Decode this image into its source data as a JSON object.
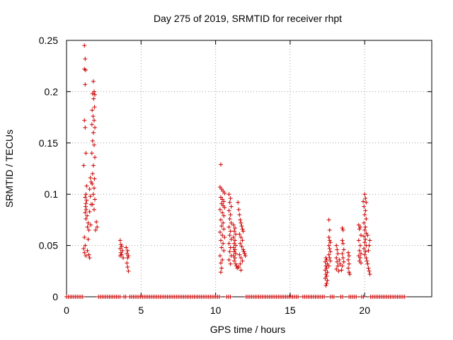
{
  "chart_data": {
    "type": "scatter",
    "title": "Day 275 of 2019, SRMTID for receiver rhpt",
    "xlabel": "GPS time / hours",
    "ylabel": "SRMTID / TECUs",
    "xlim": [
      0,
      24.5
    ],
    "ylim": [
      0,
      0.25
    ],
    "xticks": [
      0,
      5,
      10,
      15,
      20
    ],
    "xtick_labels": [
      "0",
      "5",
      "10",
      "15",
      "20"
    ],
    "yticks": [
      0,
      0.05,
      0.1,
      0.15,
      0.2,
      0.25
    ],
    "ytick_labels": [
      "0",
      "0.05",
      "0.1",
      "0.15",
      "0.2",
      "0.25"
    ],
    "grid": true,
    "marker": "+",
    "series": [
      {
        "name": "SRMTID",
        "color": "#cc0000",
        "points": [
          [
            1.2,
            0.245
          ],
          [
            1.25,
            0.232
          ],
          [
            1.2,
            0.222
          ],
          [
            1.28,
            0.221
          ],
          [
            1.25,
            0.207
          ],
          [
            1.8,
            0.21
          ],
          [
            1.85,
            0.2
          ],
          [
            1.75,
            0.198
          ],
          [
            1.9,
            0.197
          ],
          [
            1.82,
            0.193
          ],
          [
            1.88,
            0.185
          ],
          [
            1.72,
            0.182
          ],
          [
            1.78,
            0.176
          ],
          [
            1.85,
            0.172
          ],
          [
            1.7,
            0.168
          ],
          [
            1.9,
            0.165
          ],
          [
            1.8,
            0.16
          ],
          [
            1.75,
            0.152
          ],
          [
            1.85,
            0.148
          ],
          [
            1.7,
            0.14
          ],
          [
            1.9,
            0.136
          ],
          [
            1.8,
            0.128
          ],
          [
            1.75,
            0.12
          ],
          [
            1.88,
            0.115
          ],
          [
            1.72,
            0.11
          ],
          [
            1.85,
            0.106
          ],
          [
            1.8,
            0.1
          ],
          [
            1.9,
            0.095
          ],
          [
            1.75,
            0.09
          ],
          [
            1.85,
            0.085
          ],
          [
            2.0,
            0.073
          ],
          [
            2.05,
            0.068
          ],
          [
            1.95,
            0.065
          ],
          [
            1.2,
            0.172
          ],
          [
            1.25,
            0.165
          ],
          [
            1.3,
            0.14
          ],
          [
            1.15,
            0.128
          ],
          [
            1.35,
            0.108
          ],
          [
            1.3,
            0.1
          ],
          [
            1.25,
            0.097
          ],
          [
            1.35,
            0.094
          ],
          [
            1.3,
            0.091
          ],
          [
            1.28,
            0.088
          ],
          [
            1.32,
            0.085
          ],
          [
            1.25,
            0.082
          ],
          [
            1.38,
            0.079
          ],
          [
            1.3,
            0.076
          ],
          [
            1.45,
            0.072
          ],
          [
            1.4,
            0.068
          ],
          [
            1.5,
            0.065
          ],
          [
            1.2,
            0.058
          ],
          [
            1.45,
            0.056
          ],
          [
            1.25,
            0.05
          ],
          [
            1.15,
            0.047
          ],
          [
            1.4,
            0.045
          ],
          [
            1.2,
            0.043
          ],
          [
            1.5,
            0.041
          ],
          [
            1.3,
            0.04
          ],
          [
            1.55,
            0.038
          ],
          [
            1.6,
            0.116
          ],
          [
            1.65,
            0.112
          ],
          [
            1.55,
            0.105
          ],
          [
            1.6,
            0.098
          ],
          [
            1.65,
            0.09
          ],
          [
            1.55,
            0.083
          ],
          [
            1.62,
            0.07
          ],
          [
            3.6,
            0.055
          ],
          [
            3.65,
            0.051
          ],
          [
            3.7,
            0.049
          ],
          [
            3.6,
            0.047
          ],
          [
            3.75,
            0.045
          ],
          [
            3.65,
            0.043
          ],
          [
            3.7,
            0.041
          ],
          [
            3.6,
            0.04
          ],
          [
            3.8,
            0.038
          ],
          [
            4.0,
            0.048
          ],
          [
            4.1,
            0.045
          ],
          [
            4.05,
            0.042
          ],
          [
            4.15,
            0.04
          ],
          [
            4.1,
            0.038
          ],
          [
            4.05,
            0.033
          ],
          [
            4.1,
            0.029
          ],
          [
            4.15,
            0.025
          ],
          [
            10.35,
            0.129
          ],
          [
            10.3,
            0.107
          ],
          [
            10.4,
            0.105
          ],
          [
            10.5,
            0.103
          ],
          [
            10.6,
            0.101
          ],
          [
            10.35,
            0.097
          ],
          [
            10.45,
            0.095
          ],
          [
            10.55,
            0.093
          ],
          [
            10.4,
            0.091
          ],
          [
            10.5,
            0.089
          ],
          [
            10.6,
            0.087
          ],
          [
            10.3,
            0.085
          ],
          [
            10.45,
            0.082
          ],
          [
            10.55,
            0.079
          ],
          [
            10.35,
            0.075
          ],
          [
            10.5,
            0.072
          ],
          [
            10.4,
            0.069
          ],
          [
            10.55,
            0.066
          ],
          [
            10.3,
            0.063
          ],
          [
            10.45,
            0.06
          ],
          [
            10.6,
            0.058
          ],
          [
            10.35,
            0.055
          ],
          [
            10.5,
            0.052
          ],
          [
            10.4,
            0.048
          ],
          [
            10.55,
            0.045
          ],
          [
            10.3,
            0.04
          ],
          [
            10.45,
            0.036
          ],
          [
            10.35,
            0.033
          ],
          [
            10.4,
            0.028
          ],
          [
            10.35,
            0.024
          ],
          [
            10.9,
            0.1
          ],
          [
            11.0,
            0.096
          ],
          [
            10.95,
            0.092
          ],
          [
            11.05,
            0.088
          ],
          [
            10.9,
            0.084
          ],
          [
            11.0,
            0.08
          ],
          [
            10.95,
            0.076
          ],
          [
            11.05,
            0.072
          ],
          [
            10.9,
            0.068
          ],
          [
            11.0,
            0.064
          ],
          [
            10.95,
            0.06
          ],
          [
            11.05,
            0.056
          ],
          [
            10.9,
            0.052
          ],
          [
            11.0,
            0.048
          ],
          [
            10.95,
            0.044
          ],
          [
            11.05,
            0.04
          ],
          [
            10.9,
            0.036
          ],
          [
            11.0,
            0.032
          ],
          [
            11.2,
            0.07
          ],
          [
            11.3,
            0.067
          ],
          [
            11.25,
            0.064
          ],
          [
            11.35,
            0.061
          ],
          [
            11.2,
            0.058
          ],
          [
            11.3,
            0.055
          ],
          [
            11.25,
            0.052
          ],
          [
            11.35,
            0.05
          ],
          [
            11.2,
            0.048
          ],
          [
            11.3,
            0.046
          ],
          [
            11.25,
            0.044
          ],
          [
            11.35,
            0.042
          ],
          [
            11.2,
            0.04
          ],
          [
            11.3,
            0.038
          ],
          [
            11.25,
            0.035
          ],
          [
            11.35,
            0.032
          ],
          [
            11.4,
            0.03
          ],
          [
            11.45,
            0.028
          ],
          [
            11.5,
            0.092
          ],
          [
            11.55,
            0.085
          ],
          [
            11.6,
            0.08
          ],
          [
            11.65,
            0.075
          ],
          [
            11.7,
            0.072
          ],
          [
            11.75,
            0.069
          ],
          [
            11.8,
            0.066
          ],
          [
            11.85,
            0.064
          ],
          [
            11.6,
            0.061
          ],
          [
            11.7,
            0.058
          ],
          [
            11.8,
            0.055
          ],
          [
            11.65,
            0.052
          ],
          [
            11.75,
            0.049
          ],
          [
            11.85,
            0.046
          ],
          [
            11.9,
            0.044
          ],
          [
            11.6,
            0.041
          ],
          [
            11.7,
            0.038
          ],
          [
            11.8,
            0.035
          ],
          [
            11.65,
            0.032
          ],
          [
            11.55,
            0.029
          ],
          [
            11.7,
            0.026
          ],
          [
            11.95,
            0.042
          ],
          [
            12.0,
            0.04
          ],
          [
            17.4,
            0.038
          ],
          [
            17.45,
            0.036
          ],
          [
            17.35,
            0.034
          ],
          [
            17.5,
            0.032
          ],
          [
            17.4,
            0.03
          ],
          [
            17.45,
            0.028
          ],
          [
            17.35,
            0.026
          ],
          [
            17.5,
            0.024
          ],
          [
            17.4,
            0.022
          ],
          [
            17.45,
            0.02
          ],
          [
            17.35,
            0.018
          ],
          [
            17.5,
            0.016
          ],
          [
            17.45,
            0.013
          ],
          [
            17.4,
            0.011
          ],
          [
            17.6,
            0.075
          ],
          [
            17.65,
            0.065
          ],
          [
            17.6,
            0.058
          ],
          [
            17.65,
            0.055
          ],
          [
            17.7,
            0.053
          ],
          [
            17.6,
            0.05
          ],
          [
            17.65,
            0.047
          ],
          [
            17.7,
            0.044
          ],
          [
            17.6,
            0.041
          ],
          [
            17.65,
            0.038
          ],
          [
            17.7,
            0.035
          ],
          [
            17.6,
            0.03
          ],
          [
            18.1,
            0.05
          ],
          [
            18.15,
            0.046
          ],
          [
            18.2,
            0.042
          ],
          [
            18.1,
            0.038
          ],
          [
            18.15,
            0.034
          ],
          [
            18.2,
            0.03
          ],
          [
            18.1,
            0.027
          ],
          [
            18.25,
            0.025
          ],
          [
            18.3,
            0.036
          ],
          [
            18.35,
            0.032
          ],
          [
            18.5,
            0.067
          ],
          [
            18.55,
            0.065
          ],
          [
            18.5,
            0.055
          ],
          [
            18.55,
            0.052
          ],
          [
            18.6,
            0.046
          ],
          [
            18.5,
            0.042
          ],
          [
            18.55,
            0.038
          ],
          [
            18.6,
            0.034
          ],
          [
            18.5,
            0.03
          ],
          [
            18.45,
            0.026
          ],
          [
            18.9,
            0.043
          ],
          [
            18.95,
            0.04
          ],
          [
            18.9,
            0.036
          ],
          [
            18.95,
            0.032
          ],
          [
            18.9,
            0.028
          ],
          [
            18.95,
            0.024
          ],
          [
            19.0,
            0.022
          ],
          [
            19.6,
            0.07
          ],
          [
            19.7,
            0.068
          ],
          [
            19.65,
            0.066
          ],
          [
            19.75,
            0.06
          ],
          [
            19.6,
            0.055
          ],
          [
            19.7,
            0.05
          ],
          [
            19.65,
            0.045
          ],
          [
            19.75,
            0.042
          ],
          [
            19.6,
            0.04
          ],
          [
            19.7,
            0.038
          ],
          [
            19.65,
            0.035
          ],
          [
            19.75,
            0.033
          ],
          [
            19.9,
            0.093
          ],
          [
            20.0,
            0.1
          ],
          [
            20.05,
            0.096
          ],
          [
            20.1,
            0.092
          ],
          [
            19.95,
            0.088
          ],
          [
            20.05,
            0.084
          ],
          [
            20.0,
            0.08
          ],
          [
            20.1,
            0.076
          ],
          [
            19.95,
            0.072
          ],
          [
            20.05,
            0.068
          ],
          [
            20.0,
            0.065
          ],
          [
            20.1,
            0.062
          ],
          [
            19.95,
            0.059
          ],
          [
            20.05,
            0.056
          ],
          [
            20.0,
            0.053
          ],
          [
            20.1,
            0.05
          ],
          [
            19.95,
            0.047
          ],
          [
            20.05,
            0.044
          ],
          [
            20.0,
            0.041
          ],
          [
            20.1,
            0.038
          ],
          [
            20.15,
            0.035
          ],
          [
            20.2,
            0.032
          ],
          [
            20.25,
            0.028
          ],
          [
            20.3,
            0.025
          ],
          [
            20.35,
            0.022
          ],
          [
            20.25,
            0.045
          ],
          [
            20.3,
            0.05
          ],
          [
            20.35,
            0.055
          ],
          [
            20.2,
            0.06
          ]
        ],
        "zero_ranges": [
          [
            0.0,
            1.1
          ],
          [
            2.15,
            3.7
          ],
          [
            3.85,
            4.05
          ],
          [
            4.25,
            10.25
          ],
          [
            10.75,
            11.05
          ],
          [
            12.05,
            15.6
          ],
          [
            15.85,
            17.3
          ],
          [
            17.7,
            18.0
          ],
          [
            18.4,
            18.6
          ],
          [
            18.95,
            19.5
          ],
          [
            19.8,
            19.95
          ],
          [
            20.4,
            22.7
          ]
        ],
        "zero_step": 0.12
      }
    ]
  }
}
